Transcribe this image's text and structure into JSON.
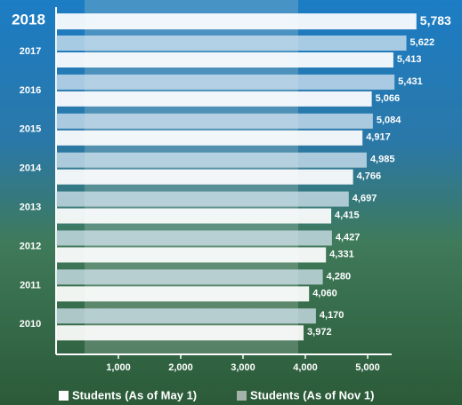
{
  "chart_data": {
    "type": "hbar",
    "categories": [
      "2018",
      "2017",
      "2016",
      "2015",
      "2014",
      "2013",
      "2012",
      "2011",
      "2010"
    ],
    "series": [
      {
        "name": "Students (As of May 1)",
        "color": "#ffffff",
        "values": [
          5783,
          5413,
          5066,
          4917,
          4766,
          4415,
          4331,
          4060,
          3972
        ],
        "value_labels": [
          "5,783",
          "5,413",
          "5,066",
          "4,917",
          "4,766",
          "4,415",
          "4,331",
          "4,060",
          "3,972"
        ]
      },
      {
        "name": "Students (As of Nov 1)",
        "color": "#a3b3ab",
        "values": [
          null,
          5622,
          5431,
          5084,
          4985,
          4697,
          4427,
          4280,
          4170
        ],
        "value_labels": [
          null,
          "5,622",
          "5,431",
          "5,084",
          "4,985",
          "4,697",
          "4,427",
          "4,280",
          "4,170"
        ]
      }
    ],
    "xlim": [
      0,
      6000
    ],
    "xticks": [
      {
        "value": 1000,
        "label": "1,000"
      },
      {
        "value": 2000,
        "label": "2,000"
      },
      {
        "value": 3000,
        "label": "3,000"
      },
      {
        "value": 4000,
        "label": "4,000"
      },
      {
        "value": 5000,
        "label": "5,000"
      }
    ],
    "legend": "bottom"
  }
}
